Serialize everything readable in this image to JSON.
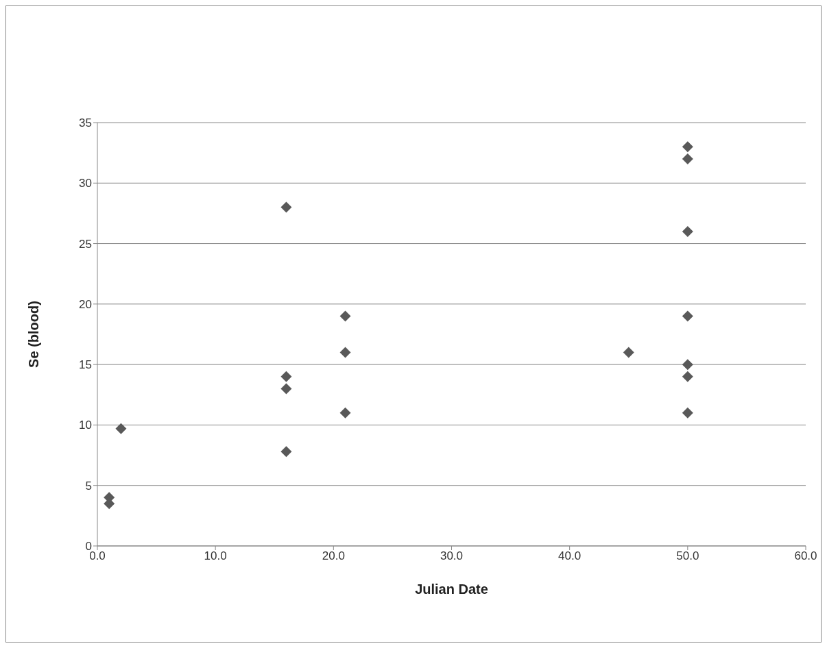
{
  "chart_data": {
    "type": "scatter",
    "xlabel": "Julian Date",
    "ylabel": "Se (blood)",
    "x": [
      1,
      1,
      2,
      16,
      16,
      16,
      16,
      21,
      21,
      21,
      45,
      50,
      50,
      50,
      50,
      50,
      50,
      50
    ],
    "values": [
      4,
      3.5,
      9.7,
      28,
      14,
      13,
      7.8,
      19,
      16,
      11,
      16,
      33,
      32,
      26,
      19,
      15,
      14,
      11
    ],
    "color": "#595959",
    "marker": "diamond",
    "grid": "y",
    "legend": false,
    "xlim": [
      0,
      60
    ],
    "xticks": [
      {
        "value": 0,
        "label": "0.0"
      },
      {
        "value": 10,
        "label": "10.0"
      },
      {
        "value": 20,
        "label": "20.0"
      },
      {
        "value": 30,
        "label": "30.0"
      },
      {
        "value": 40,
        "label": "40.0"
      },
      {
        "value": 50,
        "label": "50.0"
      },
      {
        "value": 60,
        "label": "60.0"
      }
    ],
    "ylim": [
      0,
      35
    ],
    "yticks": [
      0,
      5,
      10,
      15,
      20,
      25,
      30,
      35
    ]
  }
}
